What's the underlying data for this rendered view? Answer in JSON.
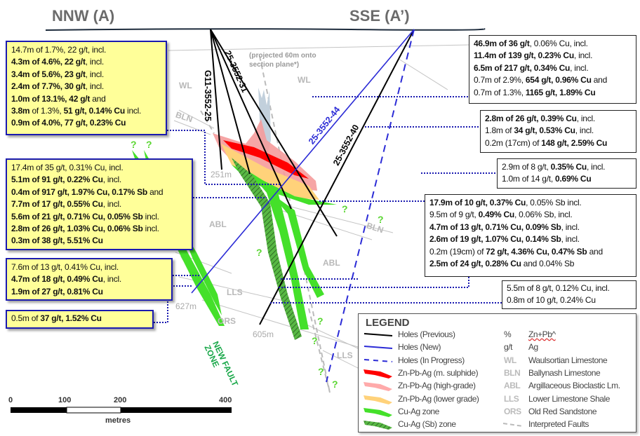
{
  "section": {
    "left_title": "NNW (A)",
    "right_title": "SSE (A’)",
    "projection_note_1": "(projected 60m onto",
    "projection_note_2": "section plane*)"
  },
  "holes": [
    {
      "id": "G11-3552-25",
      "type": "previous",
      "color": "#000000"
    },
    {
      "id": "25-3552-31",
      "type": "previous",
      "color": "#000000"
    },
    {
      "id": "25-3552-44",
      "type": "new",
      "color": "#2b2bd6"
    },
    {
      "id": "25-3552-40",
      "type": "previous",
      "color": "#000000"
    }
  ],
  "depths": [
    "251m",
    "627m",
    "605m"
  ],
  "formation_labels": {
    "wl_left": "WL",
    "wl_right": "WL",
    "bln_left": "BLN",
    "bln_right": "BLN",
    "abl_left": "ABL",
    "abl_right": "ABL",
    "lls_left": "LLS",
    "lls_right": "LLS",
    "ors": "ORS"
  },
  "fault_zone_label_1": "NEW FAULT",
  "fault_zone_label_2": "ZONE",
  "question_mark": "?",
  "intercepts": {
    "box1": [
      [
        [
          "14.7m of 1.7%, 22 g/t, incl.",
          0
        ]
      ],
      [
        [
          "4.3m of 4.6%, 22 g/t",
          1
        ],
        [
          ", incl.",
          0
        ]
      ],
      [
        [
          "3.4m of 5.6%, 23 g/t",
          1
        ],
        [
          ", incl.",
          0
        ]
      ],
      [
        [
          "2.4m of 7.7%, 30 g/t",
          1
        ],
        [
          ", incl.",
          0
        ]
      ],
      [
        [
          "1.0m of 13.1%, 42 g/t",
          1
        ],
        [
          " and",
          0
        ]
      ],
      [
        [
          "3.8m",
          1
        ],
        [
          " of 1.3%, ",
          0
        ],
        [
          "51 g/t, 0.14% Cu",
          1
        ],
        [
          " incl.",
          0
        ]
      ],
      [
        [
          "0.9m of 4.0%, 77 g/t, 0.23% Cu",
          1
        ]
      ]
    ],
    "box2": [
      [
        [
          "46.9m of 36 g/t",
          1
        ],
        [
          ", 0.06% Cu, incl.",
          0
        ]
      ],
      [
        [
          "11.4m of 139 g/t, 0.23% Cu",
          1
        ],
        [
          ", incl.",
          0
        ]
      ],
      [
        [
          "6.5m of 217 g/t, 0.34% Cu",
          1
        ],
        [
          ", incl.",
          0
        ]
      ],
      [
        [
          "0.7m of 2.9%, ",
          0
        ],
        [
          "654 g/t, 0.96% Cu",
          1
        ],
        [
          " and",
          0
        ]
      ],
      [
        [
          "0.7m of 1.3%, ",
          0
        ],
        [
          "1165 g/t, 1.89% Cu",
          1
        ]
      ]
    ],
    "box3": [
      [
        [
          "2.8m of 26 g/t, 0.39% Cu",
          1
        ],
        [
          ", incl.",
          0
        ]
      ],
      [
        [
          "1.8m of ",
          0
        ],
        [
          "34 g/t, 0.53% Cu",
          1
        ],
        [
          ", incl.",
          0
        ]
      ],
      [
        [
          "0.2m (17cm) of ",
          0
        ],
        [
          "148 g/t, 2.59% Cu",
          1
        ]
      ]
    ],
    "box4": [
      [
        [
          "2.9m of 8 g/t, ",
          0
        ],
        [
          "0.35% Cu",
          1
        ],
        [
          ", incl.",
          0
        ]
      ],
      [
        [
          "1.0m of 14 g/t, ",
          0
        ],
        [
          "0.69% Cu",
          1
        ]
      ]
    ],
    "box5": [
      [
        [
          "17.4m of 35 g/t, 0.31% Cu, incl.",
          0
        ]
      ],
      [
        [
          "5.1m of 91 g/t, 0.22% Cu",
          1
        ],
        [
          ", incl.",
          0
        ]
      ],
      [
        [
          "0.4m of 917 g/t, 1.97% Cu, 0.17% Sb",
          1
        ],
        [
          " and",
          0
        ]
      ],
      [
        [
          "7.7m of 17 g/t, 0.55% Cu",
          1
        ],
        [
          ", incl.",
          0
        ]
      ],
      [
        [
          "5.6m of 21 g/t, 0.71% Cu, 0.05% Sb",
          1
        ],
        [
          " incl.",
          0
        ]
      ],
      [
        [
          "2.8m of 26 g/t, 1.03% Cu, 0.06% Sb",
          1
        ],
        [
          " incl.",
          0
        ]
      ],
      [
        [
          "0.3m of 38 g/t, 5.51% Cu",
          1
        ]
      ]
    ],
    "box6": [
      [
        [
          "17.9m of 10 g/t, 0.37% Cu",
          1
        ],
        [
          ", 0.05% Sb incl.",
          0
        ]
      ],
      [
        [
          "9.5m of 9 g/t, ",
          0
        ],
        [
          "0.49% Cu",
          1
        ],
        [
          ", 0.06% Sb, incl.",
          0
        ]
      ],
      [
        [
          "4.7m of 13 g/t, 0.71% Cu, 0.09% Sb",
          1
        ],
        [
          ", incl.",
          0
        ]
      ],
      [
        [
          "2.6m of 19 g/t, 1.07% Cu, 0.14% Sb",
          1
        ],
        [
          ", incl.",
          0
        ]
      ],
      [
        [
          "0.2m (19cm) of ",
          0
        ],
        [
          "72 g/t, 4.36% Cu, 0.47% Sb",
          1
        ],
        [
          " and",
          0
        ]
      ],
      [
        [
          "2.5m of 24 g/t, 0.28% Cu",
          1
        ],
        [
          " and 0.04% Sb",
          0
        ]
      ]
    ],
    "box7": [
      [
        [
          "7.6m of 13 g/t, 0.41% Cu, incl.",
          0
        ]
      ],
      [
        [
          "4.7m of 18 g/t, 0.49% Cu",
          1
        ],
        [
          ", incl.",
          0
        ]
      ],
      [
        [
          "1.9m of 27 g/t, 0.81% Cu",
          1
        ]
      ]
    ],
    "box8": [
      [
        [
          "0.5m of ",
          0
        ],
        [
          "37 g/t, 1.52% Cu",
          1
        ]
      ]
    ],
    "box9": [
      [
        [
          "5.5m of 8 g/t, 0.12% Cu, incl.",
          0
        ]
      ],
      [
        [
          "0.8m of 10 g/t, 0.24% Cu",
          0
        ]
      ]
    ]
  },
  "legend": {
    "title": "LEGEND",
    "items": [
      {
        "label": "Holes (Previous)",
        "symbol": "line-solid",
        "color": "#000000",
        "abbr": "%",
        "meaning": "Zn+Pb^"
      },
      {
        "label": "Holes (New)",
        "symbol": "line-solid",
        "color": "#2b2bd6",
        "abbr": "g/t",
        "meaning": "Ag"
      },
      {
        "label": "Holes (In Progress)",
        "symbol": "line-dashed",
        "color": "#2b2bd6",
        "abbr": "WL",
        "meaning": "Waulsortian Limestone"
      },
      {
        "label": "Zn-Pb-Ag (m. sulphide)",
        "symbol": "zone",
        "color": "#ff0000",
        "abbr": "BLN",
        "meaning": "Ballynash Limestone"
      },
      {
        "label": "Zn-Pb-Ag (high-grade)",
        "symbol": "zone",
        "color": "#ffaaaa",
        "abbr": "ABL",
        "meaning": "Argillaceous Bioclastic Lm."
      },
      {
        "label": "Zn-Pb-Ag (lower grade)",
        "symbol": "zone",
        "color": "#ffd27a",
        "abbr": "LLS",
        "meaning": "Lower Limestone Shale"
      },
      {
        "label": "Cu-Ag zone",
        "symbol": "zone",
        "color": "#44e02a",
        "abbr": "ORS",
        "meaning": "Old Red Sandstone"
      },
      {
        "label": "Cu-Ag (Sb) zone",
        "symbol": "zone-hatched",
        "color": "#3cb82a",
        "abbr": "",
        "meaning": "Interpreted Faults"
      }
    ]
  },
  "scale": {
    "ticks": [
      "0",
      "100",
      "200",
      "400"
    ],
    "unit": "metres"
  }
}
